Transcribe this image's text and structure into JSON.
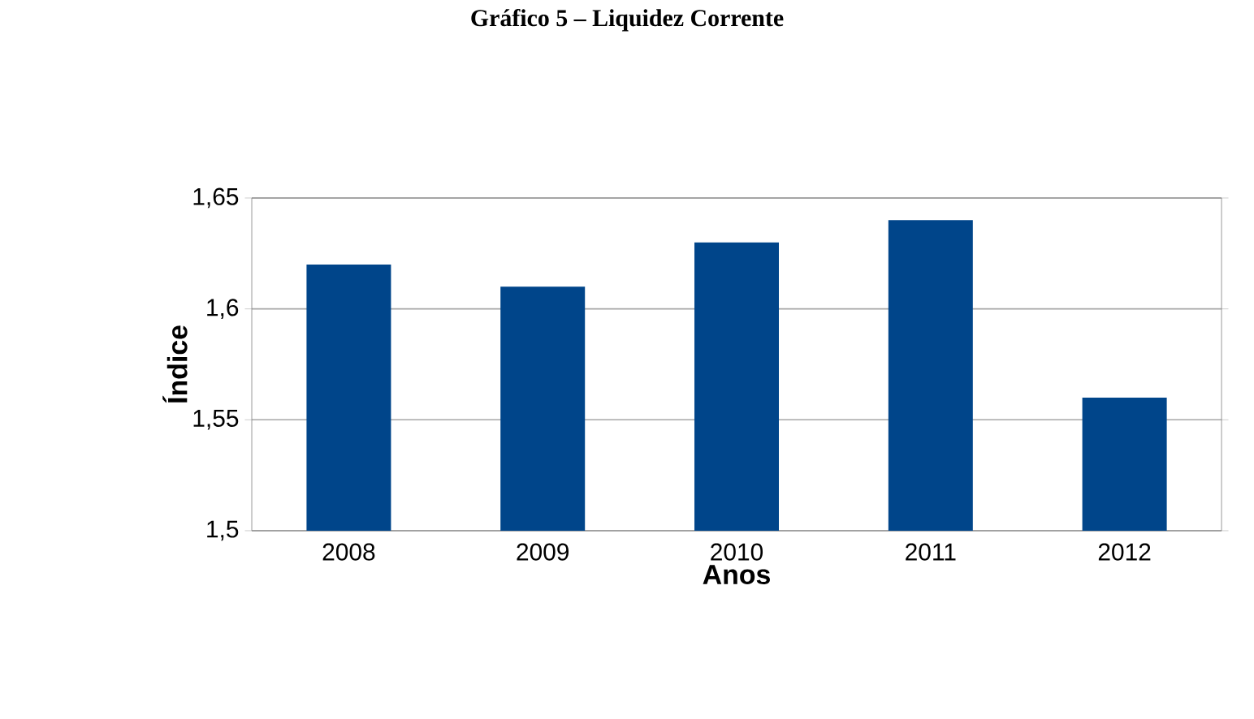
{
  "chart_data": {
    "type": "bar",
    "title": "Gráfico 5 – Liquidez Corrente",
    "xlabel": "Anos",
    "ylabel": "Índice",
    "categories": [
      "2008",
      "2009",
      "2010",
      "2011",
      "2012"
    ],
    "values": [
      1.62,
      1.61,
      1.63,
      1.64,
      1.56
    ],
    "color": "#00458a",
    "ylim": [
      1.5,
      1.65
    ],
    "yticks": [
      {
        "value": 1.5,
        "label": "1,5"
      },
      {
        "value": 1.55,
        "label": "1,55"
      },
      {
        "value": 1.6,
        "label": "1,6"
      },
      {
        "value": 1.65,
        "label": "1,65"
      }
    ],
    "grid": "y"
  }
}
